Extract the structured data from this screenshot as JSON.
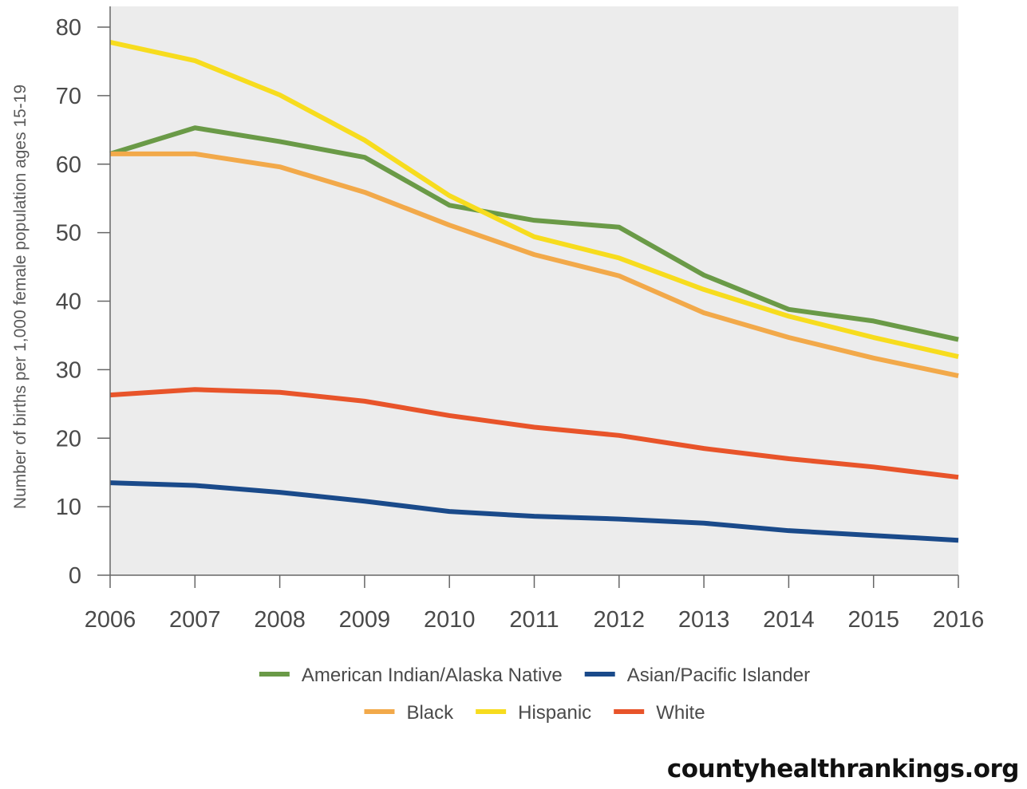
{
  "chart_data": {
    "type": "line",
    "title": "",
    "xlabel": "",
    "ylabel": "Number of births per 1,000 female population ages 15-19",
    "x": [
      "2006",
      "2007",
      "2008",
      "2009",
      "2010",
      "2011",
      "2012",
      "2013",
      "2014",
      "2015",
      "2016"
    ],
    "ylim": [
      0,
      80
    ],
    "yticks": [
      "0",
      "10",
      "20",
      "30",
      "40",
      "50",
      "60",
      "70",
      "80"
    ],
    "grid": false,
    "legend_position": "bottom",
    "series": [
      {
        "name": "American Indian/Alaska Native",
        "color": "#6a9a47",
        "values": [
          61.5,
          65.3,
          63.3,
          61.0,
          54.0,
          51.8,
          50.8,
          43.8,
          38.8,
          37.1,
          34.4
        ]
      },
      {
        "name": "Asian/Pacific Islander",
        "color": "#1a4a8a",
        "values": [
          13.5,
          13.1,
          12.1,
          10.8,
          9.3,
          8.6,
          8.2,
          7.6,
          6.5,
          5.8,
          5.1
        ]
      },
      {
        "name": "Black",
        "color": "#f2a94a",
        "values": [
          61.5,
          61.5,
          59.6,
          55.9,
          51.1,
          46.8,
          43.7,
          38.3,
          34.7,
          31.7,
          29.1
        ]
      },
      {
        "name": "Hispanic",
        "color": "#f7dc1e",
        "values": [
          77.8,
          75.1,
          70.1,
          63.5,
          55.4,
          49.4,
          46.3,
          41.7,
          37.8,
          34.7,
          31.9
        ]
      },
      {
        "name": "White",
        "color": "#e8542a",
        "values": [
          26.3,
          27.1,
          26.7,
          25.4,
          23.3,
          21.6,
          20.4,
          18.5,
          17.0,
          15.8,
          14.3
        ]
      }
    ],
    "legend_rows": [
      [
        "American Indian/Alaska Native",
        "Asian/Pacific Islander"
      ],
      [
        "Black",
        "Hispanic",
        "White"
      ]
    ]
  },
  "footer": {
    "source": "countyhealthrankings.org"
  }
}
